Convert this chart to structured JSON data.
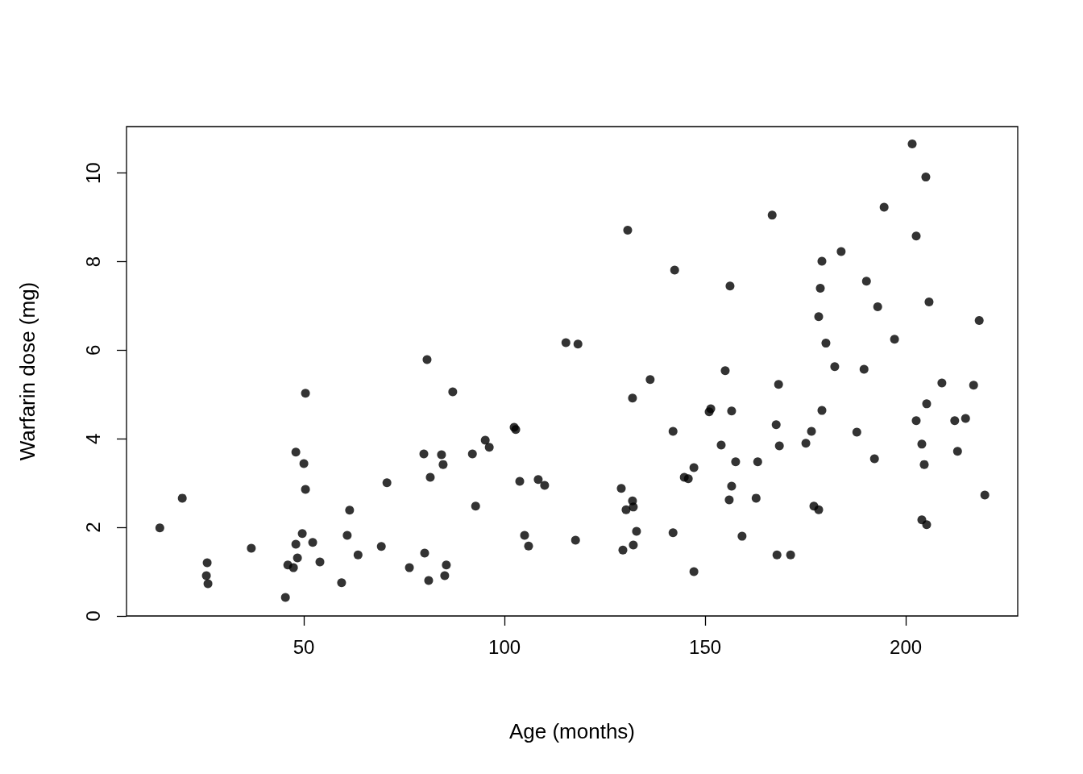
{
  "chart_data": {
    "type": "scatter",
    "xlabel": "Age (months)",
    "ylabel": "Warfarin dose (mg)",
    "xlim": [
      5.8,
      227.9
    ],
    "ylim": [
      0,
      11.05
    ],
    "xticks": [
      50,
      100,
      150,
      200
    ],
    "yticks": [
      0,
      2,
      4,
      6,
      8,
      10
    ],
    "grid": false,
    "marker": "circle",
    "series": [
      {
        "color": "#000000",
        "x": [
          14.1,
          19.7,
          25.9,
          25.7,
          26.1,
          36.9,
          45.4,
          46.0,
          47.4,
          48.0,
          48.0,
          48.4,
          49.6,
          50.0,
          50.4,
          50.4,
          52.2,
          54.0,
          59.4,
          60.8,
          61.4,
          63.5,
          69.3,
          70.7,
          76.3,
          79.9,
          80.1,
          80.7,
          81.1,
          81.5,
          84.3,
          84.7,
          85.1,
          85.5,
          87.1,
          92.0,
          92.8,
          95.2,
          96.2,
          102.4,
          102.8,
          103.8,
          105.0,
          106.0,
          108.4,
          110.0,
          115.3,
          117.7,
          118.3,
          129.1,
          129.5,
          130.3,
          130.7,
          131.9,
          131.9,
          132.1,
          132.1,
          132.9,
          136.3,
          142.0,
          142.0,
          142.4,
          144.8,
          145.8,
          147.2,
          147.2,
          151.0,
          151.4,
          154.0,
          155.0,
          156.0,
          156.2,
          156.6,
          156.6,
          157.6,
          159.2,
          162.7,
          163.1,
          166.7,
          167.7,
          167.9,
          168.3,
          168.5,
          171.3,
          175.1,
          176.5,
          177.1,
          178.3,
          178.3,
          178.7,
          179.1,
          179.1,
          180.1,
          182.3,
          183.9,
          187.8,
          189.6,
          190.2,
          192.2,
          193.0,
          194.6,
          197.2,
          201.6,
          202.6,
          202.6,
          204.0,
          204.0,
          204.6,
          205.0,
          205.2,
          205.2,
          205.8,
          209.0,
          212.2,
          212.9,
          214.9,
          216.9,
          218.3,
          219.7
        ],
        "values": [
          1.99,
          2.66,
          1.2,
          0.91,
          0.73,
          1.53,
          0.42,
          1.15,
          1.09,
          3.7,
          1.62,
          1.31,
          1.86,
          3.44,
          5.03,
          2.86,
          1.66,
          1.22,
          0.75,
          1.82,
          2.39,
          1.38,
          1.57,
          3.01,
          1.09,
          3.66,
          1.42,
          5.79,
          0.8,
          3.13,
          3.64,
          3.42,
          0.91,
          1.15,
          5.06,
          3.66,
          2.48,
          3.97,
          3.81,
          4.26,
          4.21,
          3.04,
          1.82,
          1.58,
          3.08,
          2.95,
          6.17,
          1.71,
          6.14,
          2.88,
          1.49,
          2.4,
          8.71,
          4.92,
          2.6,
          2.46,
          1.6,
          1.91,
          5.34,
          1.88,
          4.17,
          7.81,
          3.13,
          3.1,
          1.0,
          3.35,
          4.61,
          4.68,
          3.86,
          5.54,
          2.62,
          7.45,
          4.63,
          2.93,
          3.48,
          1.8,
          2.66,
          3.48,
          9.05,
          4.32,
          1.38,
          5.23,
          3.84,
          1.38,
          3.9,
          4.17,
          2.48,
          6.76,
          2.4,
          7.4,
          8.01,
          4.64,
          6.16,
          5.63,
          8.23,
          4.15,
          5.57,
          7.56,
          3.55,
          6.98,
          9.23,
          6.25,
          10.66,
          4.41,
          8.58,
          3.88,
          2.17,
          3.42,
          9.91,
          4.79,
          2.06,
          7.09,
          5.26,
          4.41,
          3.72,
          4.46,
          5.21,
          6.67,
          2.73
        ]
      }
    ]
  }
}
